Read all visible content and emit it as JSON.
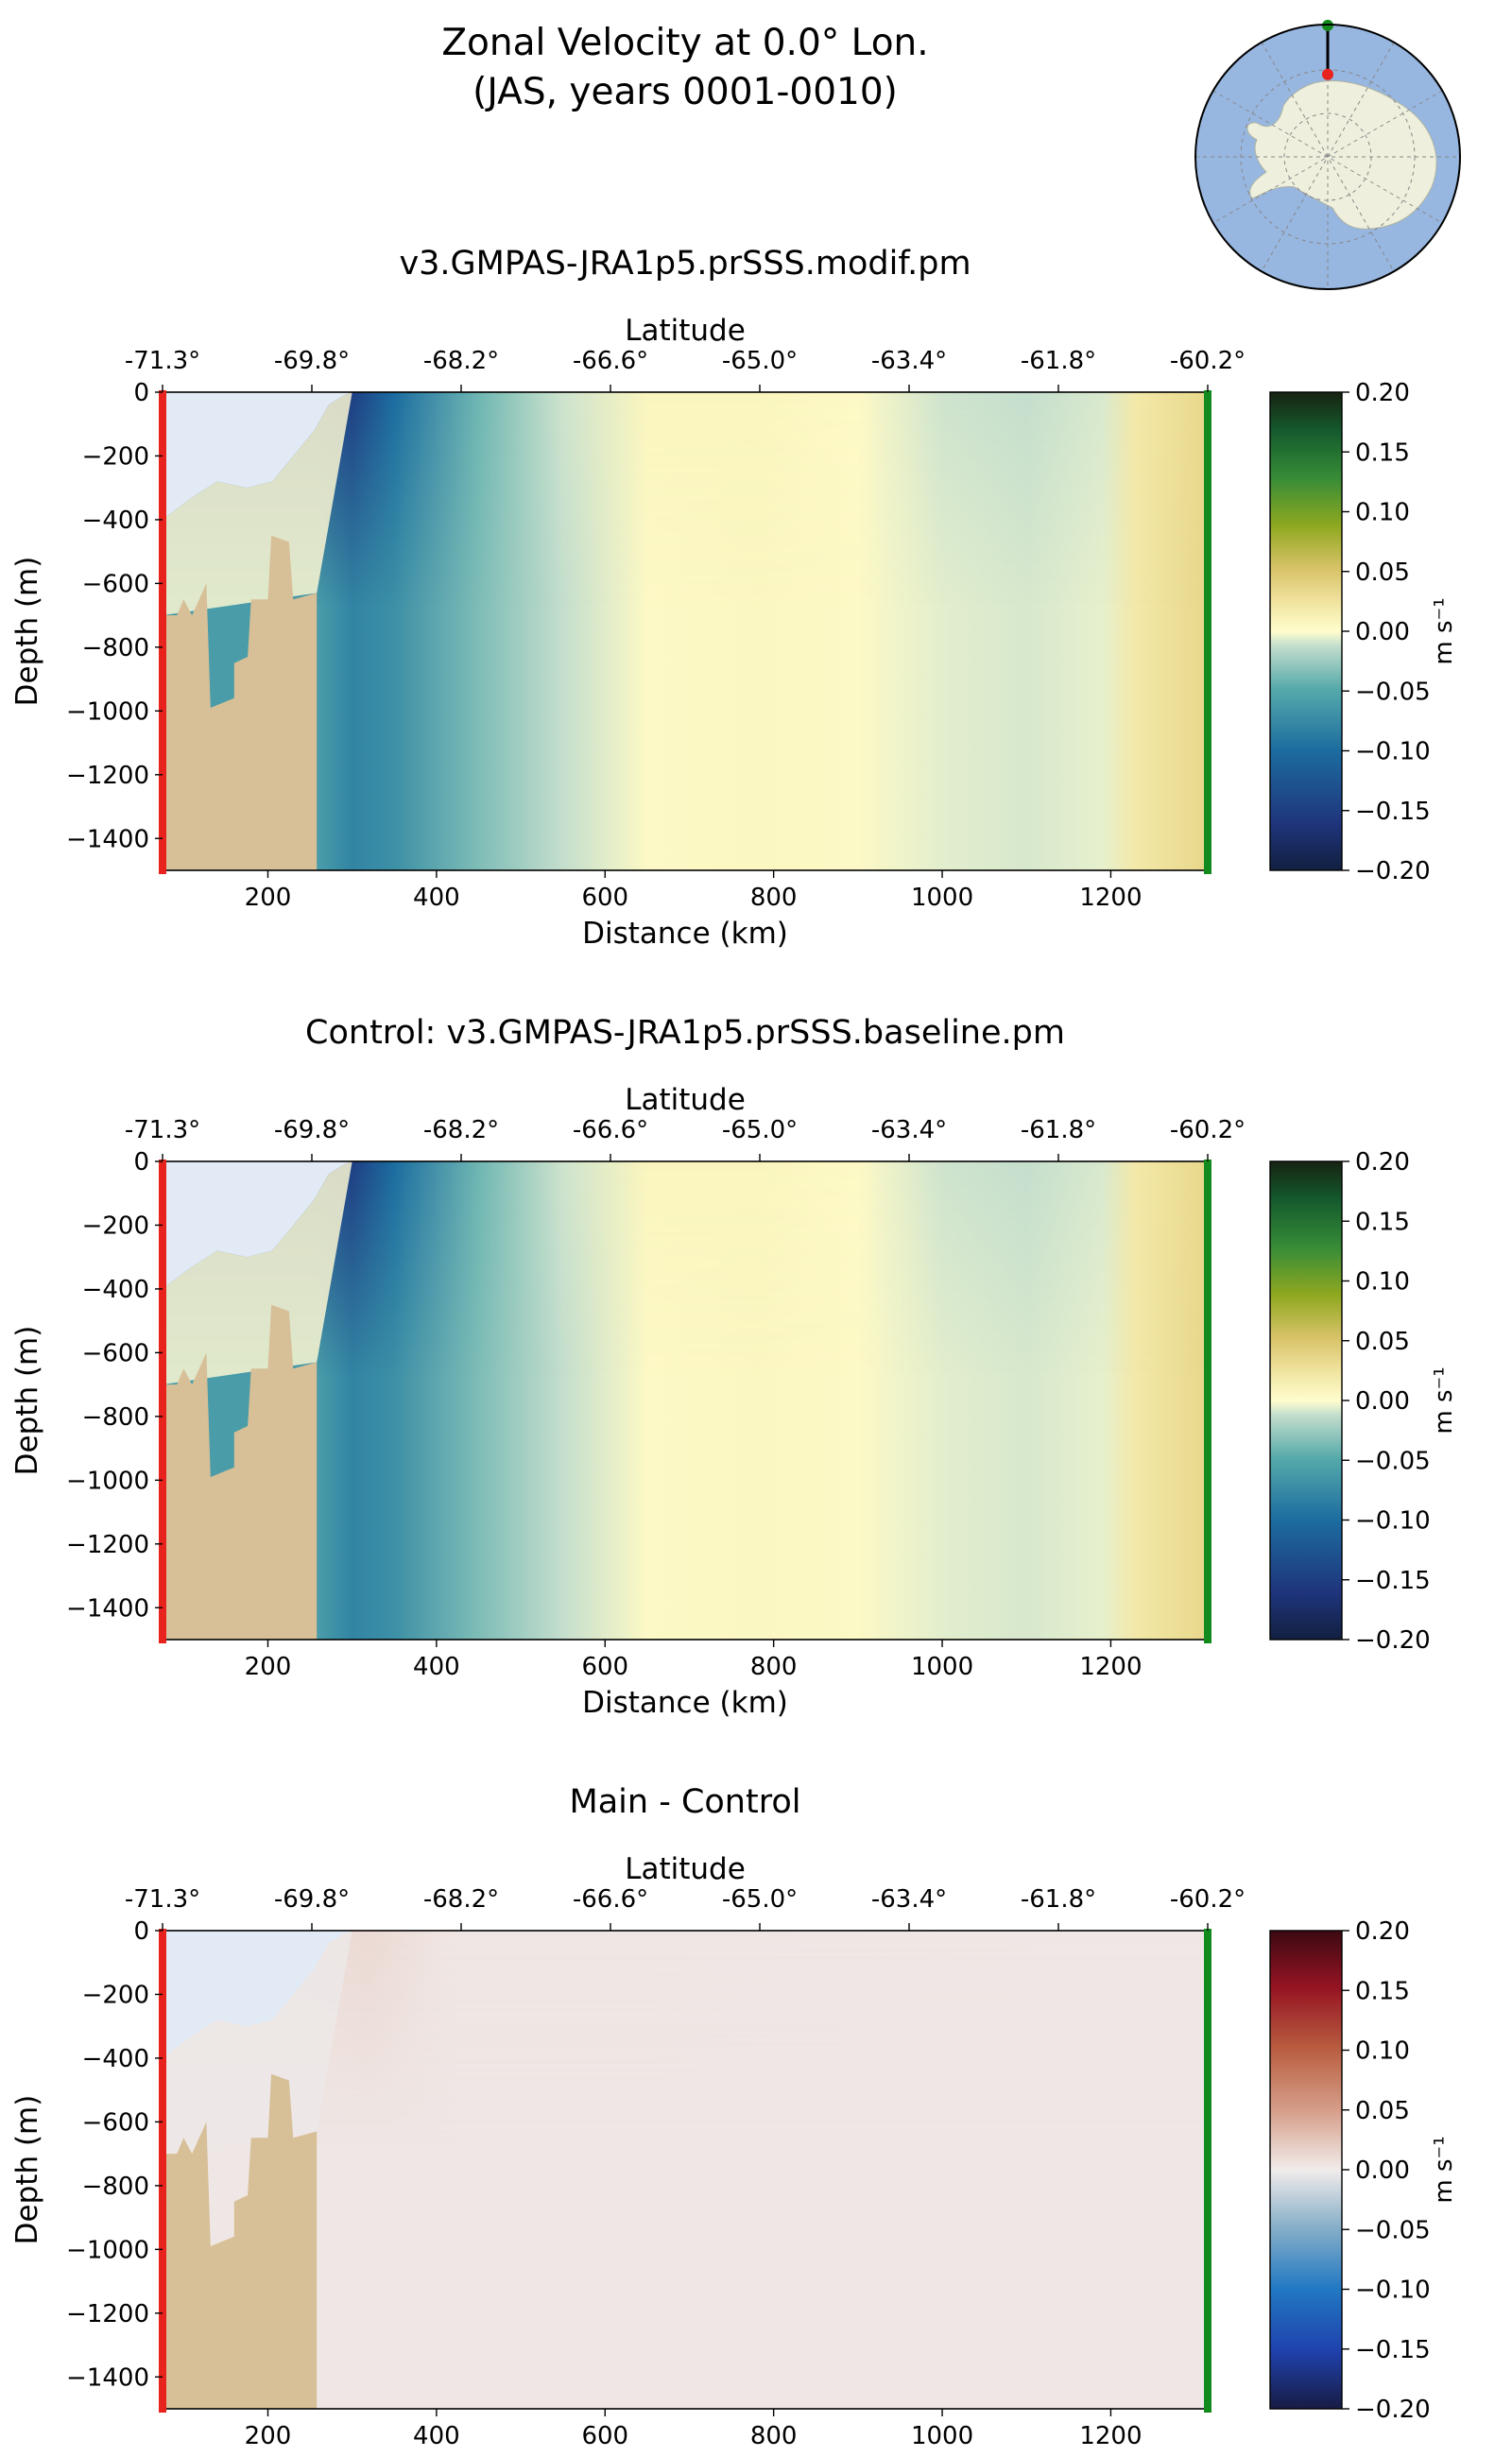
{
  "figure": {
    "title_line1": "Zonal Velocity at 0.0° Lon.",
    "title_line2": "(JAS, years 0001-0010)"
  },
  "colors": {
    "ice_shelf": "#e2eaf6",
    "bathymetry": "#d7bf97",
    "start_marker": "#e8221c",
    "end_marker": "#138a1d",
    "map_ocean": "#97b6e0",
    "map_land": "#eef0dd"
  },
  "inset_map": {
    "label": "transect-location-map"
  },
  "chart_data": [
    {
      "type": "heatmap",
      "title": "v3.GMPAS-JRA1p5.prSSS.modif.pm",
      "xlabel": "Distance (km)",
      "ylabel": "Depth (m)",
      "top_xlabel": "Latitude",
      "xlim": [
        75,
        1315
      ],
      "ylim": [
        -1500,
        0
      ],
      "x_ticks": [
        200,
        400,
        600,
        800,
        1000,
        1200
      ],
      "y_ticks": [
        0,
        -200,
        -400,
        -600,
        -800,
        -1000,
        -1200,
        -1400
      ],
      "lat_tick_labels": [
        "-71.3°",
        "-69.8°",
        "-68.2°",
        "-66.6°",
        "-65.0°",
        "-63.4°",
        "-61.8°",
        "-60.2°"
      ],
      "colorbar": {
        "label": "m s⁻¹",
        "min": -0.2,
        "max": 0.2,
        "ticks": [
          "0.20",
          "0.15",
          "0.10",
          "0.05",
          "0.00",
          "−0.05",
          "−0.10",
          "−0.15",
          "−0.20"
        ],
        "cmap": "cmocean-delta"
      },
      "sections": [
        {
          "x": 260,
          "surface": -0.14,
          "deep": -0.06
        },
        {
          "x": 300,
          "surface": -0.15,
          "deep": -0.08
        },
        {
          "x": 350,
          "surface": -0.1,
          "deep": -0.07
        },
        {
          "x": 450,
          "surface": -0.04,
          "deep": -0.035
        },
        {
          "x": 550,
          "surface": -0.01,
          "deep": -0.012
        },
        {
          "x": 650,
          "surface": 0.008,
          "deep": 0.004
        },
        {
          "x": 780,
          "surface": 0.008,
          "deep": 0.006
        },
        {
          "x": 900,
          "surface": 0.004,
          "deep": 0.004
        },
        {
          "x": 1000,
          "surface": -0.01,
          "deep": -0.006
        },
        {
          "x": 1100,
          "surface": -0.012,
          "deep": -0.008
        },
        {
          "x": 1190,
          "surface": -0.008,
          "deep": -0.005
        },
        {
          "x": 1230,
          "surface": 0.02,
          "deep": 0.02
        },
        {
          "x": 1315,
          "surface": 0.035,
          "deep": 0.035
        }
      ]
    },
    {
      "type": "heatmap",
      "title": "Control: v3.GMPAS-JRA1p5.prSSS.baseline.pm",
      "xlabel": "Distance (km)",
      "ylabel": "Depth (m)",
      "top_xlabel": "Latitude",
      "xlim": [
        75,
        1315
      ],
      "ylim": [
        -1500,
        0
      ],
      "x_ticks": [
        200,
        400,
        600,
        800,
        1000,
        1200
      ],
      "y_ticks": [
        0,
        -200,
        -400,
        -600,
        -800,
        -1000,
        -1200,
        -1400
      ],
      "lat_tick_labels": [
        "-71.3°",
        "-69.8°",
        "-68.2°",
        "-66.6°",
        "-65.0°",
        "-63.4°",
        "-61.8°",
        "-60.2°"
      ],
      "colorbar": {
        "label": "m s⁻¹",
        "min": -0.2,
        "max": 0.2,
        "ticks": [
          "0.20",
          "0.15",
          "0.10",
          "0.05",
          "0.00",
          "−0.05",
          "−0.10",
          "−0.15",
          "−0.20"
        ],
        "cmap": "cmocean-delta"
      },
      "sections": [
        {
          "x": 260,
          "surface": -0.14,
          "deep": -0.06
        },
        {
          "x": 300,
          "surface": -0.15,
          "deep": -0.08
        },
        {
          "x": 350,
          "surface": -0.1,
          "deep": -0.07
        },
        {
          "x": 450,
          "surface": -0.04,
          "deep": -0.035
        },
        {
          "x": 550,
          "surface": -0.01,
          "deep": -0.012
        },
        {
          "x": 650,
          "surface": 0.008,
          "deep": 0.004
        },
        {
          "x": 780,
          "surface": 0.008,
          "deep": 0.006
        },
        {
          "x": 900,
          "surface": 0.004,
          "deep": 0.004
        },
        {
          "x": 1000,
          "surface": -0.01,
          "deep": -0.006
        },
        {
          "x": 1100,
          "surface": -0.012,
          "deep": -0.008
        },
        {
          "x": 1190,
          "surface": -0.008,
          "deep": -0.005
        },
        {
          "x": 1230,
          "surface": 0.02,
          "deep": 0.02
        },
        {
          "x": 1315,
          "surface": 0.035,
          "deep": 0.035
        }
      ]
    },
    {
      "type": "heatmap",
      "title": "Main - Control",
      "xlabel": "Distance (km)",
      "ylabel": "Depth (m)",
      "top_xlabel": "Latitude",
      "xlim": [
        75,
        1315
      ],
      "ylim": [
        -1500,
        0
      ],
      "x_ticks": [
        200,
        400,
        600,
        800,
        1000,
        1200
      ],
      "y_ticks": [
        0,
        -200,
        -400,
        -600,
        -800,
        -1000,
        -1200,
        -1400
      ],
      "lat_tick_labels": [
        "-71.3°",
        "-69.8°",
        "-68.2°",
        "-66.6°",
        "-65.0°",
        "-63.4°",
        "-61.8°",
        "-60.2°"
      ],
      "colorbar": {
        "label": "m s⁻¹",
        "min": -0.2,
        "max": 0.2,
        "ticks": [
          "0.20",
          "0.15",
          "0.10",
          "0.05",
          "0.00",
          "−0.05",
          "−0.10",
          "−0.15",
          "−0.20"
        ],
        "cmap": "cmocean-balance"
      },
      "sections": [
        {
          "x": 260,
          "surface": 0.01,
          "deep": 0.003
        },
        {
          "x": 320,
          "surface": 0.012,
          "deep": 0.003
        },
        {
          "x": 420,
          "surface": 0.004,
          "deep": 0.003
        },
        {
          "x": 1315,
          "surface": 0.003,
          "deep": 0.003
        }
      ]
    }
  ],
  "bathymetry_profile": [
    {
      "x": 75,
      "depth": -700
    },
    {
      "x": 92,
      "depth": -700
    },
    {
      "x": 100,
      "depth": -650
    },
    {
      "x": 110,
      "depth": -700
    },
    {
      "x": 127,
      "depth": -600
    },
    {
      "x": 132,
      "depth": -990
    },
    {
      "x": 160,
      "depth": -960
    },
    {
      "x": 160,
      "depth": -850
    },
    {
      "x": 176,
      "depth": -830
    },
    {
      "x": 180,
      "depth": -650
    },
    {
      "x": 200,
      "depth": -650
    },
    {
      "x": 204,
      "depth": -450
    },
    {
      "x": 225,
      "depth": -470
    },
    {
      "x": 230,
      "depth": -650
    },
    {
      "x": 258,
      "depth": -630
    },
    {
      "x": 258,
      "depth": -1500
    }
  ],
  "ice_shelf_profile": [
    {
      "x": 75,
      "depth": -400
    },
    {
      "x": 110,
      "depth": -330
    },
    {
      "x": 140,
      "depth": -280
    },
    {
      "x": 175,
      "depth": -300
    },
    {
      "x": 205,
      "depth": -280
    },
    {
      "x": 230,
      "depth": -200
    },
    {
      "x": 255,
      "depth": -120
    },
    {
      "x": 272,
      "depth": -40
    },
    {
      "x": 290,
      "depth": -10
    },
    {
      "x": 300,
      "depth": 0
    }
  ],
  "inset_transect": {
    "start_lat": -71.3,
    "end_lat": -60.2
  }
}
